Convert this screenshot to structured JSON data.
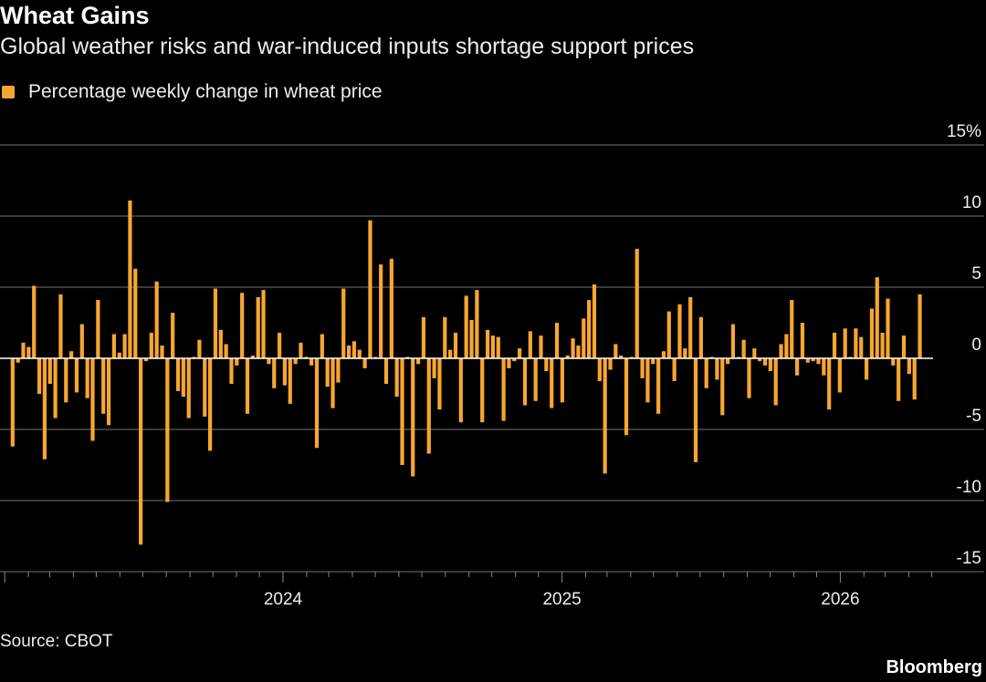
{
  "chart_data": {
    "type": "bar",
    "title": "Wheat Gains",
    "subtitle": "Global weather risks and war-induced inputs shortage support prices",
    "series": [
      {
        "name": "Percentage weekly change in wheat price",
        "color": "#f7a632"
      }
    ],
    "ylim": [
      -15,
      15
    ],
    "yticks": [
      15,
      10,
      5,
      0,
      -5,
      -10,
      -15
    ],
    "ytick_labels": [
      "15%",
      "10",
      "5",
      "0",
      "-5",
      "-10",
      "-15"
    ],
    "xtick_labels": [
      "2024",
      "2025",
      "2026"
    ],
    "xticks": [
      "2024-01-01",
      "2025-01-01",
      "2026-01-01"
    ],
    "grid": true,
    "legend": "top-left",
    "dates": [
      "2023-01-13",
      "2023-01-20",
      "2023-01-27",
      "2023-02-03",
      "2023-02-10",
      "2023-02-17",
      "2023-02-24",
      "2023-03-03",
      "2023-03-10",
      "2023-03-17",
      "2023-03-24",
      "2023-03-31",
      "2023-04-07",
      "2023-04-14",
      "2023-04-21",
      "2023-04-28",
      "2023-05-05",
      "2023-05-12",
      "2023-05-19",
      "2023-05-26",
      "2023-06-02",
      "2023-06-09",
      "2023-06-16",
      "2023-06-23",
      "2023-06-30",
      "2023-07-07",
      "2023-07-14",
      "2023-07-21",
      "2023-07-28",
      "2023-08-04",
      "2023-08-11",
      "2023-08-18",
      "2023-08-25",
      "2023-09-01",
      "2023-09-08",
      "2023-09-15",
      "2023-09-22",
      "2023-09-29",
      "2023-10-06",
      "2023-10-13",
      "2023-10-20",
      "2023-10-27",
      "2023-11-03",
      "2023-11-10",
      "2023-11-17",
      "2023-11-24",
      "2023-12-01",
      "2023-12-08",
      "2023-12-15",
      "2023-12-22",
      "2023-12-29",
      "2024-01-05",
      "2024-01-12",
      "2024-01-19",
      "2024-01-26",
      "2024-02-02",
      "2024-02-09",
      "2024-02-16",
      "2024-02-23",
      "2024-03-01",
      "2024-03-08",
      "2024-03-15",
      "2024-03-22",
      "2024-03-29",
      "2024-04-05",
      "2024-04-12",
      "2024-04-19",
      "2024-04-26",
      "2024-05-03",
      "2024-05-10",
      "2024-05-17",
      "2024-05-24",
      "2024-05-31",
      "2024-06-07",
      "2024-06-14",
      "2024-06-21",
      "2024-06-28",
      "2024-07-05",
      "2024-07-12",
      "2024-07-19",
      "2024-07-26",
      "2024-08-02",
      "2024-08-09",
      "2024-08-16",
      "2024-08-23",
      "2024-08-30",
      "2024-09-06",
      "2024-09-13",
      "2024-09-20",
      "2024-09-27",
      "2024-10-04",
      "2024-10-11",
      "2024-10-18",
      "2024-10-25",
      "2024-11-01",
      "2024-11-08",
      "2024-11-15",
      "2024-11-22",
      "2024-11-29",
      "2024-12-06",
      "2024-12-13",
      "2024-12-20",
      "2024-12-27",
      "2025-01-03",
      "2025-01-10",
      "2025-01-17",
      "2025-01-24",
      "2025-01-31",
      "2025-02-07",
      "2025-02-14",
      "2025-02-21",
      "2025-02-28",
      "2025-03-07",
      "2025-03-14",
      "2025-03-21",
      "2025-03-28",
      "2025-04-04",
      "2025-04-11",
      "2025-04-18",
      "2025-04-25",
      "2025-05-02",
      "2025-05-09",
      "2025-05-16",
      "2025-05-23",
      "2025-05-30",
      "2025-06-06",
      "2025-06-13",
      "2025-06-20",
      "2025-06-27",
      "2025-07-04",
      "2025-07-11",
      "2025-07-18",
      "2025-07-25",
      "2025-08-01",
      "2025-08-08",
      "2025-08-15",
      "2025-08-22",
      "2025-08-29",
      "2025-09-05",
      "2025-09-12",
      "2025-09-19",
      "2025-09-26",
      "2025-10-03",
      "2025-10-10",
      "2025-10-17",
      "2025-10-24",
      "2025-10-31",
      "2025-11-07",
      "2025-11-14",
      "2025-11-21",
      "2025-11-28",
      "2025-12-05",
      "2025-12-12",
      "2025-12-19",
      "2025-12-26",
      "2026-01-02",
      "2026-01-09",
      "2026-01-16",
      "2026-01-23",
      "2026-01-30",
      "2026-02-06",
      "2026-02-13",
      "2026-02-20",
      "2026-02-27",
      "2026-03-06",
      "2026-03-13",
      "2026-03-20",
      "2026-03-27",
      "2026-04-03",
      "2026-04-10",
      "2026-04-17"
    ],
    "values": [
      -6.2,
      -0.3,
      1.1,
      0.8,
      5.1,
      -2.5,
      -7.1,
      -1.8,
      -4.2,
      4.5,
      -3.1,
      0.5,
      -2.4,
      2.4,
      -2.8,
      -5.8,
      4.1,
      -3.9,
      -4.7,
      1.7,
      0.4,
      1.7,
      11.1,
      6.3,
      -13.1,
      -0.2,
      1.8,
      5.4,
      0.9,
      -10.1,
      3.2,
      -2.3,
      -2.7,
      -4.2,
      0.1,
      1.3,
      -4.1,
      -6.5,
      4.9,
      2.0,
      1.0,
      -1.8,
      -0.5,
      4.6,
      -3.9,
      0.2,
      4.3,
      4.8,
      -0.4,
      -2.1,
      1.8,
      -1.9,
      -3.2,
      -0.4,
      1.1,
      0.1,
      -0.5,
      -6.3,
      1.7,
      -2.0,
      -3.5,
      -1.7,
      4.9,
      0.9,
      1.2,
      0.6,
      -0.7,
      9.7,
      0.1,
      6.6,
      -1.8,
      7.0,
      -2.7,
      -7.5,
      0.1,
      -8.3,
      -0.4,
      2.9,
      -6.7,
      -1.4,
      -3.6,
      2.9,
      0.6,
      1.8,
      -4.5,
      4.4,
      2.7,
      4.8,
      -4.5,
      2.0,
      1.6,
      1.5,
      -4.4,
      -0.7,
      -0.2,
      0.7,
      -3.3,
      1.9,
      -3.0,
      1.6,
      -0.9,
      -3.5,
      2.5,
      -3.1,
      0.2,
      1.4,
      0.9,
      2.8,
      4.1,
      5.2,
      -1.6,
      -8.1,
      -0.8,
      1.0,
      0.2,
      -5.4,
      0.1,
      7.7,
      -1.4,
      -3.1,
      -0.4,
      -3.9,
      0.5,
      3.3,
      -1.6,
      3.8,
      0.7,
      4.3,
      -7.3,
      2.9,
      -2.1,
      0.1,
      -1.5,
      -4.0,
      -0.4,
      2.4,
      0.1,
      1.3,
      -2.8,
      0.7,
      -0.2,
      -0.5,
      -0.9,
      -3.3,
      1.0,
      1.7,
      4.1,
      -1.2,
      2.5,
      -0.3,
      -0.2,
      -0.4,
      -1.2,
      -3.6,
      1.8,
      -2.4,
      2.1,
      0.1,
      2.1,
      1.5,
      -1.5,
      3.5,
      5.7,
      1.8,
      4.2,
      -0.5,
      -3.0,
      1.6,
      -1.1,
      -2.9,
      4.5
    ]
  },
  "colors": {
    "bar": "#f7a632",
    "grid": "#4d4d4d",
    "zero_line": "#ffffff",
    "background": "#000000"
  },
  "footer": {
    "source": "Source: CBOT",
    "brand": "Bloomberg"
  }
}
